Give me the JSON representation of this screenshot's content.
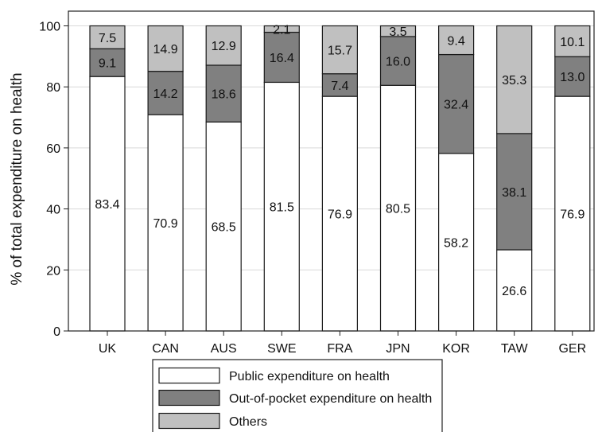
{
  "chart_data": {
    "type": "bar",
    "stacked": true,
    "title": "",
    "xlabel": "",
    "ylabel": "% of total expenditure on health",
    "ylim": [
      0,
      100
    ],
    "yticks": [
      0,
      20,
      40,
      60,
      80,
      100
    ],
    "grid": true,
    "legend_position": "bottom",
    "categories": [
      "UK",
      "CAN",
      "AUS",
      "SWE",
      "FRA",
      "JPN",
      "KOR",
      "TAW",
      "GER"
    ],
    "series": [
      {
        "name": "Public expenditure on health",
        "color": "#ffffff",
        "values": [
          83.4,
          70.9,
          68.5,
          81.5,
          76.9,
          80.5,
          58.2,
          26.6,
          76.9
        ],
        "labels": [
          "83.4",
          "70.9",
          "68.5",
          "81.5",
          "76.9",
          "80.5",
          "58.2",
          "26.6",
          "76.9"
        ]
      },
      {
        "name": "Out-of-pocket expenditure on health",
        "color": "#808080",
        "values": [
          9.1,
          14.2,
          18.6,
          16.4,
          7.4,
          16.0,
          32.4,
          38.1,
          13.0
        ],
        "labels": [
          "9.1",
          "14.2",
          "18.6",
          "16.4",
          "7.4",
          "16.0",
          "32.4",
          "38.1",
          "13.0"
        ]
      },
      {
        "name": "Others",
        "color": "#c0c0c0",
        "values": [
          7.5,
          14.9,
          12.9,
          2.1,
          15.7,
          3.5,
          9.4,
          35.3,
          10.1
        ],
        "labels": [
          "7.5",
          "14.9",
          "12.9",
          "2.1",
          "15.7",
          "3.5",
          "9.4",
          "35.3",
          "10.1"
        ]
      }
    ]
  }
}
